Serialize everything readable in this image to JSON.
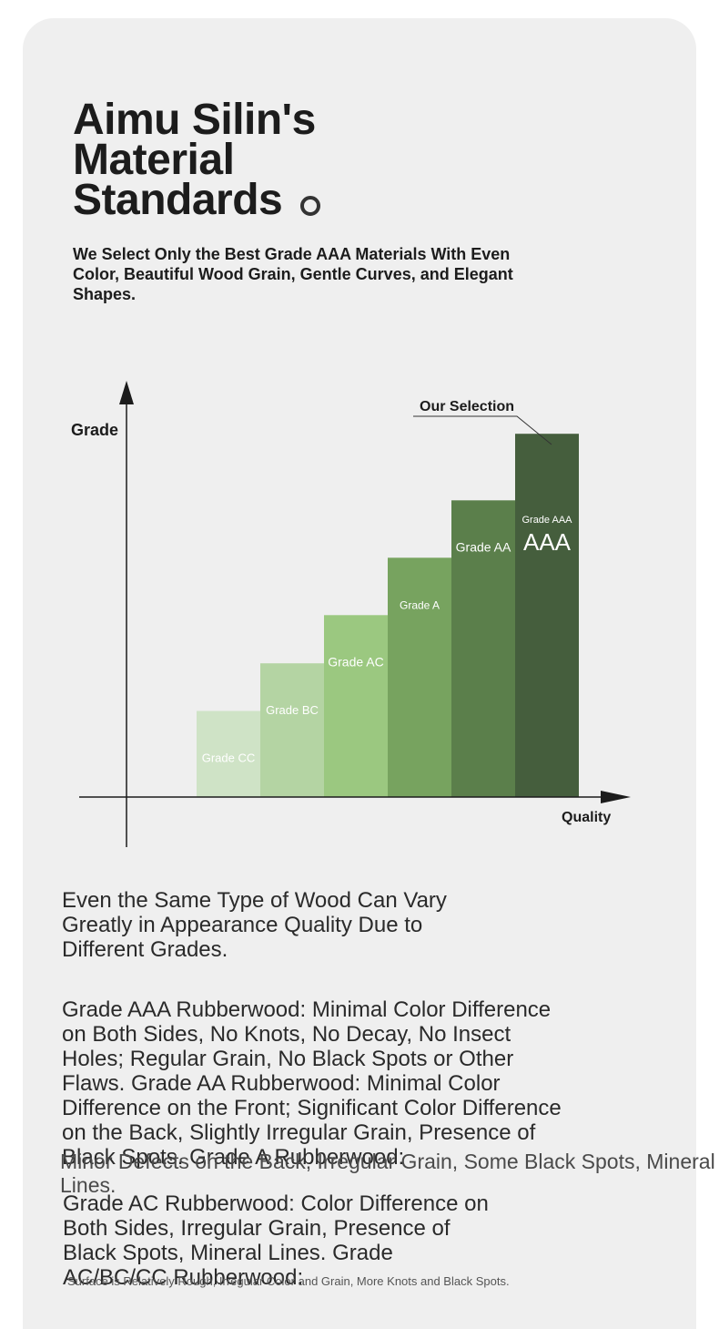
{
  "header": {
    "title_lines": [
      "Aimu Silin's",
      "Material",
      "Standards"
    ],
    "subtitle": "We Select Only the Best Grade AAA Materials With Even Color, Beautiful Wood Grain, Gentle Curves, and Elegant Shapes."
  },
  "chart_data": {
    "type": "bar",
    "categories": [
      "Grade CC",
      "Grade BC",
      "Grade AC",
      "Grade A",
      "Grade AA",
      "Grade AAA"
    ],
    "values": [
      1.5,
      2.33,
      3.17,
      4.17,
      5.17,
      6.33
    ],
    "ylim": [
      0,
      7
    ],
    "ylabel": "Grade",
    "xlabel": "Quality",
    "bar_big_label": "AAA",
    "annotation": "Our Selection",
    "colors": [
      "#cfe3c6",
      "#b4d4a3",
      "#9bc880",
      "#77a35f",
      "#5b7f4b",
      "#455e3d"
    ],
    "label_colors": [
      "#ffffff",
      "#ffffff",
      "#ffffff",
      "#ffffff",
      "#ffffff",
      "#ffffff"
    ],
    "grid": false
  },
  "body": {
    "para1": "Even the Same Type of Wood Can Vary Greatly in Appearance Quality Due to Different Grades.",
    "para2": "Grade AAA Rubberwood: Minimal Color Difference on Both Sides, No Knots, No Decay, No Insect Holes; Regular Grain, No Black Spots or Other Flaws. Grade AA Rubberwood: Minimal Color Difference on the Front; Significant Color Difference on the Back, Slightly Irregular Grain, Presence of Black Spots. Grade A Rubberwood:",
    "para3": "Minor Defects on the Back, Irregular Grain, Some Black Spots, Mineral Lines.",
    "para4": "Grade AC Rubberwood: Color Difference on Both Sides, Irregular Grain, Presence of Black Spots, Mineral Lines. Grade AC/BC/CC Rubberwood:",
    "footnote": "Surface is Relatively Rough, Irregular Color and Grain, More Knots and Black Spots."
  }
}
